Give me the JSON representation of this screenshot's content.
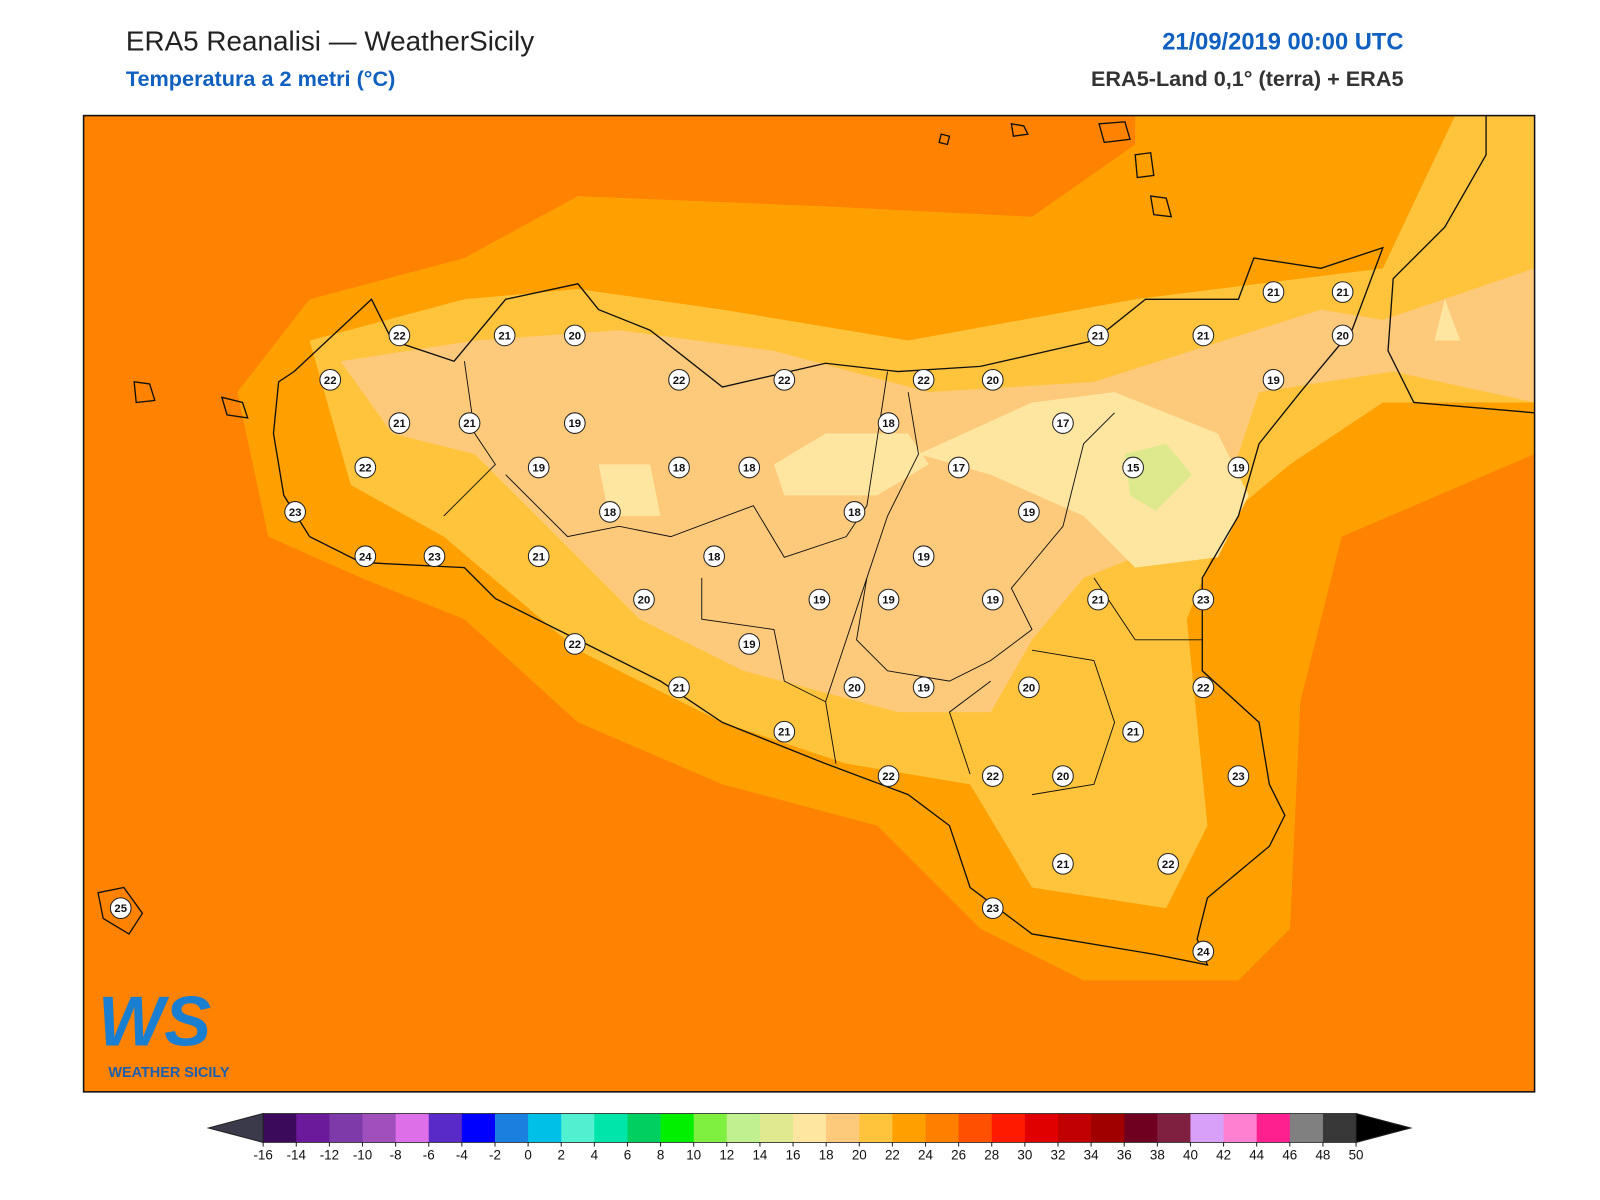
{
  "header": {
    "title": "ERA5 Reanalisi — WeatherSicily",
    "subtitle": "Temperatura a 2 metri (°C)",
    "datetime": "21/09/2019 00:00 UTC",
    "source": "ERA5-Land 0,1° (terra) + ERA5"
  },
  "stations": [
    22,
    21,
    20,
    22,
    22,
    22,
    22,
    20,
    21,
    21,
    19,
    18,
    17,
    22,
    19,
    18,
    18,
    17,
    15,
    19,
    23,
    18,
    18,
    19,
    24,
    23,
    21,
    18,
    19,
    20,
    19,
    19,
    19,
    21,
    23,
    22,
    19,
    21,
    20,
    19,
    20,
    22,
    21,
    21,
    22,
    22,
    20,
    23,
    21,
    22,
    23,
    24,
    25,
    21,
    21,
    21,
    21,
    20,
    19
  ],
  "colorbar": {
    "ticks": [
      -16,
      -14,
      -12,
      -10,
      -8,
      -6,
      -4,
      -2,
      0,
      2,
      4,
      6,
      8,
      10,
      12,
      14,
      16,
      18,
      20,
      22,
      24,
      26,
      28,
      30,
      32,
      34,
      36,
      38,
      40,
      42,
      44,
      46,
      48,
      50
    ],
    "colors": [
      "#3c0a5a",
      "#6a1a9a",
      "#7d3aa8",
      "#a050bb",
      "#dd70e8",
      "#5a2ac8",
      "#0000ff",
      "#1a80e0",
      "#00c0e8",
      "#50f0d0",
      "#00e6aa",
      "#00d060",
      "#00f000",
      "#80f040",
      "#c0f090",
      "#e0e890",
      "#ffe6a0",
      "#fdc97a",
      "#ffc43c",
      "#ffa000",
      "#ff8000",
      "#ff5000",
      "#ff1a00",
      "#e00000",
      "#c00000",
      "#a00000",
      "#700020",
      "#802040",
      "#d8a0f8",
      "#ff80d0",
      "#ff2090",
      "#808080",
      "#383838"
    ],
    "under_color": "#3a3a4a",
    "over_color": "#000000"
  },
  "logo": {
    "text": "WS",
    "tagline": "WEATHER SICILY"
  }
}
